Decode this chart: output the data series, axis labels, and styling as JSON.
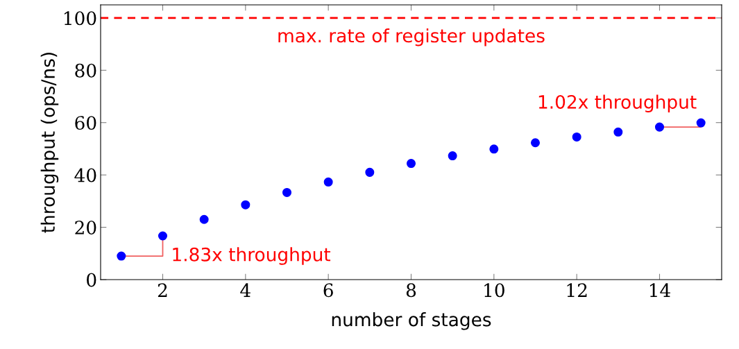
{
  "chart_data": {
    "type": "scatter",
    "xlabel": "number of stages",
    "ylabel": "throughput (ops/ns)",
    "x": [
      1,
      2,
      3,
      4,
      5,
      6,
      7,
      8,
      9,
      10,
      11,
      12,
      13,
      14,
      15
    ],
    "series": [
      {
        "color": "#0000ff",
        "values": [
          9.0,
          16.7,
          23.0,
          28.6,
          33.3,
          37.3,
          41.0,
          44.4,
          47.3,
          49.9,
          52.3,
          54.5,
          56.4,
          58.3,
          59.9
        ]
      }
    ],
    "marker": "circle",
    "xlim": [
      0.5,
      15.5
    ],
    "ylim": [
      0,
      105
    ],
    "xticks": [
      2,
      4,
      6,
      8,
      10,
      12,
      14
    ],
    "yticks": [
      0,
      20,
      40,
      60,
      80,
      100
    ],
    "grid": false,
    "legend": false,
    "ref_lines": [
      {
        "axis": "y",
        "value": 100,
        "label": "max. rate of register updates",
        "color": "#ff0000",
        "line_style": "dashed"
      }
    ],
    "annotations": [
      {
        "text": "1.83x throughput",
        "x": 2,
        "y": 16.7
      },
      {
        "text": "1.02x throughput",
        "x": 15,
        "y": 59.9
      }
    ]
  }
}
